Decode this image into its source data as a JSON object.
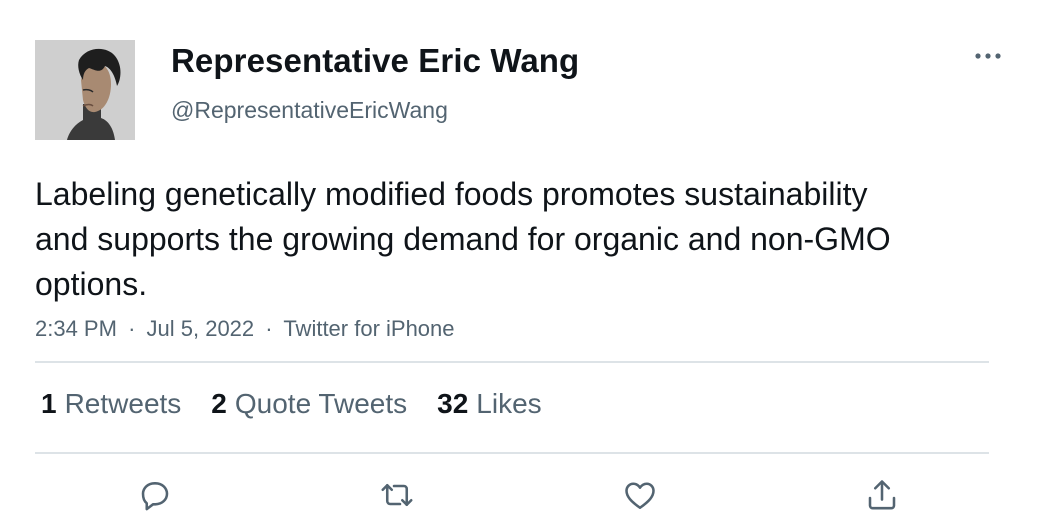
{
  "author": {
    "display_name": "Representative Eric Wang",
    "handle": "@RepresentativeEricWang",
    "avatar_icon": "profile-photo"
  },
  "tweet": {
    "text": "Labeling genetically modified foods promotes sustainability and supports the growing demand for organic and non-GMO options.",
    "time": "2:34 PM",
    "date": "Jul 5, 2022",
    "source": "Twitter for iPhone",
    "separator": "·"
  },
  "stats": [
    {
      "count": "1",
      "label": "Retweets"
    },
    {
      "count": "2",
      "label": "Quote Tweets"
    },
    {
      "count": "32",
      "label": "Likes"
    }
  ],
  "actions": {
    "reply_icon": "speech-bubble-icon",
    "retweet_icon": "retweet-arrows-icon",
    "like_icon": "heart-icon",
    "share_icon": "share-upload-icon",
    "more_icon": "ellipsis-icon"
  },
  "colors": {
    "text_primary": "#0f1419",
    "text_secondary": "#536471",
    "divider": "#dde3e7"
  }
}
